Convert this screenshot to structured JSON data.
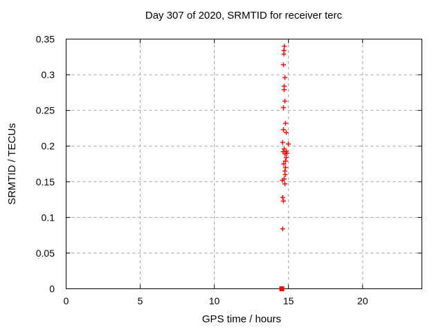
{
  "chart_data": {
    "type": "scatter",
    "title": "Day 307 of 2020, SRMTID for receiver terc",
    "xlabel": "GPS time / hours",
    "ylabel": "SRMTID / TECUs",
    "xlim": [
      0,
      24
    ],
    "ylim": [
      0,
      0.35
    ],
    "xticks": [
      0,
      5,
      10,
      15,
      20
    ],
    "xtick_labels": [
      "0",
      "5",
      "10",
      "15",
      "20"
    ],
    "yticks": [
      0,
      0.05,
      0.1,
      0.15,
      0.2,
      0.25,
      0.3,
      0.35
    ],
    "ytick_labels": [
      "0",
      "0.05",
      "0.1",
      "0.15",
      "0.2",
      "0.25",
      "0.3",
      "0.35"
    ],
    "grid": true,
    "grid_color": "#a0a0a0",
    "border_color": "#000000",
    "legend": "none",
    "series": [
      {
        "name": "srmtid-values",
        "marker": "plus",
        "color": "#ff0000",
        "points": [
          [
            14.72,
            0.34
          ],
          [
            14.7,
            0.334
          ],
          [
            14.69,
            0.329
          ],
          [
            14.66,
            0.314
          ],
          [
            14.76,
            0.296
          ],
          [
            14.71,
            0.284
          ],
          [
            14.71,
            0.279
          ],
          [
            14.76,
            0.263
          ],
          [
            14.66,
            0.254
          ],
          [
            14.8,
            0.232
          ],
          [
            14.66,
            0.223
          ],
          [
            14.85,
            0.219
          ],
          [
            14.61,
            0.205
          ],
          [
            14.99,
            0.203
          ],
          [
            14.71,
            0.196
          ],
          [
            14.85,
            0.193
          ],
          [
            14.64,
            0.192
          ],
          [
            14.9,
            0.19
          ],
          [
            14.76,
            0.189
          ],
          [
            14.85,
            0.184
          ],
          [
            14.8,
            0.179
          ],
          [
            14.68,
            0.175
          ],
          [
            14.8,
            0.17
          ],
          [
            14.76,
            0.165
          ],
          [
            14.78,
            0.16
          ],
          [
            14.71,
            0.154
          ],
          [
            14.58,
            0.152
          ],
          [
            14.76,
            0.147
          ],
          [
            14.61,
            0.128
          ],
          [
            14.66,
            0.123
          ],
          [
            14.61,
            0.084
          ]
        ]
      },
      {
        "name": "zero-value-marker",
        "marker": "square-filled",
        "color": "#ff0000",
        "points": [
          [
            14.55,
            0.0
          ]
        ]
      }
    ]
  }
}
